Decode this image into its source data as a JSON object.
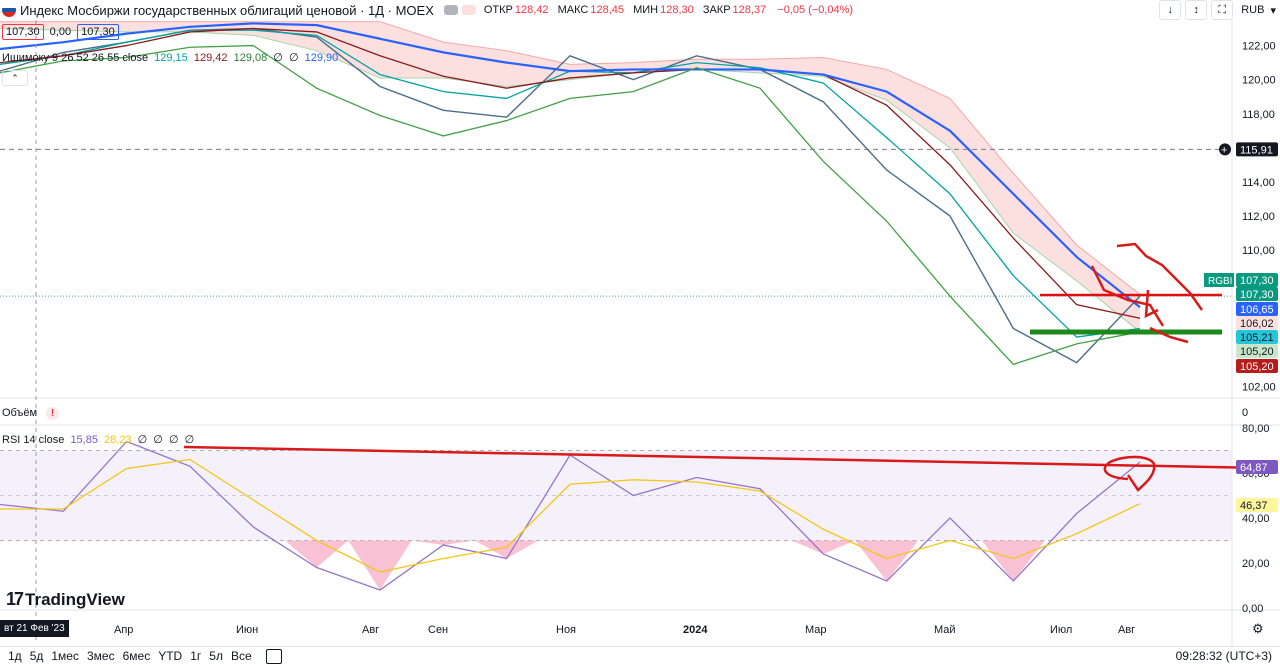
{
  "header": {
    "title": "Индекс Мосбиржи государственных облигаций ценовой · 1Д · MOEX",
    "ohlc": [
      {
        "label": "ОТКР",
        "value": "128,42"
      },
      {
        "label": "МАКС",
        "value": "128,45"
      },
      {
        "label": "МИН",
        "value": "128,30"
      },
      {
        "label": "ЗАКР",
        "value": "128,37"
      },
      {
        "label": "",
        "value": "−0,05 (−0,04%)"
      }
    ],
    "currency": "RUB",
    "bid": "107,30",
    "spread": "0,00",
    "ask": "107,30"
  },
  "indicators": {
    "ichimoku": {
      "name": "Ишимоку 9 26 52 26 55 close",
      "values": [
        "129,15",
        "129,42",
        "129,08",
        "∅",
        "∅",
        "129,90"
      ],
      "colors": [
        "#00a3a3",
        "#8b1a1a",
        "#2e7d32",
        "#131722",
        "#131722",
        "#2962ff"
      ]
    },
    "volume": {
      "name": "Объём",
      "warn": "!"
    },
    "rsi": {
      "name": "RSI 14 close",
      "values": [
        "15,85",
        "28,23",
        "∅",
        "∅",
        "∅",
        "∅"
      ],
      "colors": [
        "#7e57c2",
        "#f5c518",
        "#131722",
        "#131722",
        "#131722",
        "#131722"
      ]
    }
  },
  "axis": {
    "price_ticks": [
      "122,00",
      "120,00",
      "118,00",
      "114,00",
      "112,00",
      "110,00",
      "102,00"
    ],
    "volume_tick": "0",
    "rsi_ticks": [
      "80,00",
      "60,00",
      "40,00",
      "20,00",
      "0,00"
    ],
    "time_labels": [
      "Апр",
      "Июн",
      "Авг",
      "Сен",
      "Ноя",
      "2024",
      "Мар",
      "Май",
      "Июл",
      "Авг"
    ]
  },
  "price_labels": [
    {
      "text": "115,91",
      "bg": "#131722",
      "fg": "#ffffff"
    },
    {
      "prefix": "RGBI",
      "text": "107,30",
      "bg": "#089981",
      "fg": "#ffffff"
    },
    {
      "text": "107,30",
      "bg": "#089981",
      "fg": "#ffffff"
    },
    {
      "text": "106,65",
      "bg": "#2962ff",
      "fg": "#ffffff"
    },
    {
      "text": "106,02",
      "bg": "#fde0dc",
      "fg": "#131722"
    },
    {
      "text": "105,21",
      "bg": "#26c6da",
      "fg": "#131722"
    },
    {
      "text": "105,20",
      "bg": "#c8e6c9",
      "fg": "#131722"
    },
    {
      "text": "105,20",
      "bg": "#b71c1c",
      "fg": "#ffffff"
    },
    {
      "text": "64,87",
      "bg": "#7e57c2",
      "fg": "#ffffff"
    },
    {
      "text": "46,37",
      "bg": "#fff59d",
      "fg": "#131722"
    }
  ],
  "footer": {
    "logo": "TradingView",
    "cursor_date": "вт 21 Фев '23",
    "timeframes": [
      "1д",
      "5д",
      "1мес",
      "3мес",
      "6мес",
      "YTD",
      "1г",
      "5л",
      "Все"
    ],
    "clock": "09:28:32 (UTC+3)"
  },
  "chart_data": [
    {
      "type": "line",
      "title": "Индекс Мосбиржи государственных облигаций ценовой · 1Д · MOEX",
      "xlabel": "",
      "ylabel": "",
      "x": [
        "2023-02",
        "2023-03",
        "2023-04",
        "2023-05",
        "2023-06",
        "2023-07",
        "2023-08",
        "2023-09",
        "2023-10",
        "2023-11",
        "2023-12",
        "2024-01",
        "2024-02",
        "2024-03",
        "2024-04",
        "2024-05",
        "2024-06",
        "2024-07",
        "2024-08"
      ],
      "ylim": [
        101.5,
        123.5
      ],
      "grid": true,
      "series": [
        {
          "name": "RGBI",
          "values": [
            120.5,
            121.6,
            122.2,
            122.9,
            123.0,
            122.5,
            119.6,
            118.2,
            117.8,
            121.4,
            120.0,
            121.4,
            120.6,
            118.7,
            114.7,
            112.0,
            105.4,
            103.4,
            107.3
          ]
        },
        {
          "name": "",
          "values": [
            120.9,
            121.4,
            122.2,
            122.9,
            122.9,
            122.6,
            120.3,
            119.3,
            118.9,
            120.5,
            120.4,
            121.0,
            120.7,
            119.8,
            116.6,
            113.3,
            108.5,
            104.9,
            105.4
          ]
        },
        {
          "name": "",
          "values": [
            121.0,
            121.4,
            122.0,
            122.8,
            123.0,
            122.8,
            121.4,
            120.2,
            119.5,
            120.1,
            120.4,
            120.6,
            120.6,
            120.3,
            118.5,
            115.0,
            110.7,
            106.8,
            106.0
          ]
        },
        {
          "name": "",
          "values": [
            121.8,
            122.2,
            122.7,
            123.1,
            123.3,
            123.2,
            122.4,
            121.6,
            121.0,
            120.5,
            120.6,
            120.6,
            120.6,
            120.3,
            119.3,
            117.0,
            113.3,
            109.6,
            106.65
          ]
        },
        {
          "name": "",
          "values": [
            120.4,
            121.1,
            121.3,
            121.9,
            122.0,
            119.5,
            117.9,
            116.7,
            117.6,
            118.9,
            119.3,
            120.7,
            119.5,
            115.2,
            111.7,
            107.3,
            103.3,
            104.5,
            105.2
          ]
        }
      ],
      "cloud": {
        "upper": [
          123.4,
          123.4,
          123.4,
          123.4,
          123.4,
          123.4,
          123.4,
          122.2,
          121.7,
          120.9,
          121.0,
          121.2,
          121.2,
          121.3,
          120.6,
          118.9,
          114.5,
          110.3,
          107.4
        ],
        "lower": [
          123.0,
          122.9,
          122.8,
          122.8,
          122.6,
          121.7,
          120.1,
          120.1,
          119.6,
          120.0,
          120.4,
          120.6,
          120.4,
          120.2,
          118.8,
          116.0,
          111.0,
          108.2,
          105.2
        ]
      },
      "reference_lines": [
        {
          "name": "",
          "value": 115.91
        },
        {
          "name": "",
          "value": 107.3
        }
      ]
    },
    {
      "type": "line",
      "title": "RSI 14 close",
      "xlabel": "",
      "ylabel": "",
      "x": [
        "2023-02",
        "2023-03",
        "2023-04",
        "2023-05",
        "2023-06",
        "2023-07",
        "2023-08",
        "2023-09",
        "2023-10",
        "2023-11",
        "2023-12",
        "2024-01",
        "2024-02",
        "2024-03",
        "2024-04",
        "2024-05",
        "2024-06",
        "2024-07",
        "2024-08"
      ],
      "ylim": [
        0,
        80
      ],
      "bands": [
        30,
        50,
        70
      ],
      "series": [
        {
          "name": "RSI",
          "values": [
            46,
            43,
            74,
            63,
            36,
            18,
            8,
            28,
            22,
            68,
            50,
            58,
            53,
            24,
            12,
            40,
            12,
            42,
            64.87
          ]
        },
        {
          "name": "",
          "values": [
            44,
            44,
            62,
            66,
            48,
            30,
            16,
            22,
            27,
            55,
            57,
            56,
            52,
            35,
            22,
            30,
            22,
            33,
            46.37
          ]
        }
      ]
    }
  ]
}
